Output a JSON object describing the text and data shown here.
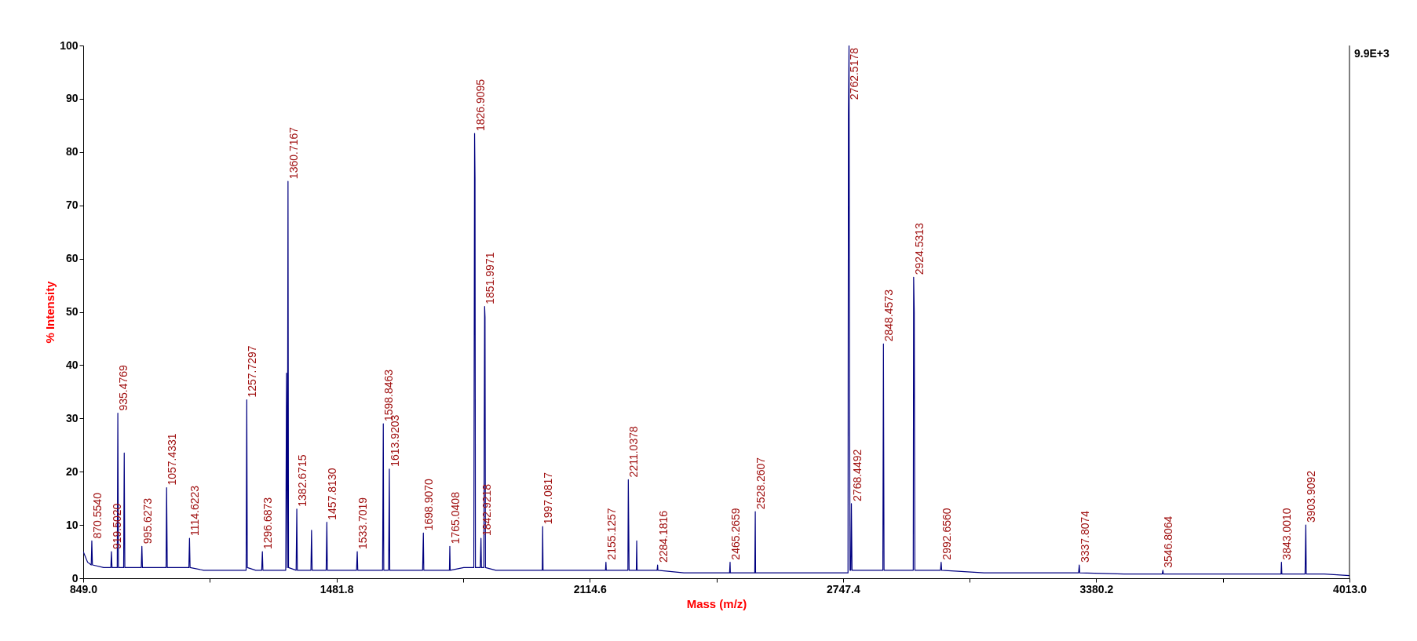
{
  "chart_data": {
    "type": "line",
    "xlabel": "Mass (m/z)",
    "ylabel": "% Intensity",
    "xlim": [
      849,
      4013
    ],
    "ylim": [
      0,
      100
    ],
    "xticks": [
      {
        "value": 849,
        "label": "849.0"
      },
      {
        "value": 1165.4,
        "label": null
      },
      {
        "value": 1481.8,
        "label": "1481.8"
      },
      {
        "value": 1798.2,
        "label": null
      },
      {
        "value": 2114.6,
        "label": "2114.6"
      },
      {
        "value": 2431,
        "label": null
      },
      {
        "value": 2747.4,
        "label": "2747.4"
      },
      {
        "value": 3063.8,
        "label": null
      },
      {
        "value": 3380.2,
        "label": "3380.2"
      },
      {
        "value": 3696.6,
        "label": null
      },
      {
        "value": 4013,
        "label": "4013.0"
      }
    ],
    "yticks": [
      0,
      10,
      20,
      30,
      40,
      50,
      60,
      70,
      80,
      90,
      100
    ],
    "grid": false,
    "series": [
      {
        "color": "#000080",
        "x": [
          849,
          860,
          869,
          870.5,
          872,
          900,
          918,
          919.5,
          921,
          934,
          935.5,
          937,
          950,
          951.5,
          953,
          970,
          994,
          995.6,
          997,
          1030,
          1056,
          1057.4,
          1059,
          1090,
          1113,
          1114.6,
          1116,
          1150,
          1200,
          1256,
          1257.7,
          1259,
          1280,
          1295,
          1296.7,
          1298,
          1330,
          1355,
          1357,
          1359,
          1360.7,
          1362,
          1381,
          1382.7,
          1384,
          1410,
          1418,
          1419.5,
          1421,
          1456,
          1457.8,
          1459,
          1490,
          1532,
          1533.7,
          1535,
          1570,
          1597,
          1598.8,
          1600,
          1612,
          1613.9,
          1615,
          1650,
          1697,
          1698.9,
          1700,
          1740,
          1764,
          1765,
          1766,
          1800,
          1825,
          1826.9,
          1828,
          1829,
          1841,
          1842.9,
          1844,
          1850,
          1852,
          1853,
          1854,
          1880,
          1950,
          1996,
          1997.1,
          1998,
          2050,
          2100,
          2154,
          2155.1,
          2156,
          2190,
          2210,
          2211,
          2212,
          2213,
          2231,
          2232,
          2233,
          2283,
          2284.2,
          2285,
          2350,
          2400,
          2464,
          2465.3,
          2466,
          2527,
          2528.3,
          2529,
          2600,
          2700,
          2760,
          2761,
          2762.5,
          2764,
          2765,
          2767,
          2768.4,
          2770,
          2800,
          2847,
          2848.5,
          2850,
          2923,
          2924,
          2925.5,
          2927,
          2991,
          2992.7,
          2994,
          3100,
          3200,
          3336,
          3337.8,
          3339,
          3450,
          3545,
          3546.8,
          3548,
          3700,
          3842,
          3843,
          3844,
          3902,
          3903.9,
          3905,
          3950,
          4013
        ],
        "values": [
          5,
          3,
          2.5,
          7,
          2.5,
          2,
          2,
          5,
          2,
          2,
          31,
          2,
          2,
          23.5,
          2,
          2,
          2,
          6,
          2,
          2,
          2,
          17,
          2,
          2,
          2,
          7.5,
          2,
          1.5,
          1.5,
          1.5,
          33.5,
          2,
          1.5,
          1.5,
          5,
          1.5,
          1.5,
          1.5,
          38.5,
          2,
          74.5,
          2,
          1.5,
          13,
          1.5,
          1.5,
          1.5,
          9,
          1.5,
          1.5,
          10.5,
          1.5,
          1.5,
          1.5,
          5,
          1.5,
          1.5,
          1.5,
          29,
          1.5,
          1.5,
          20.5,
          1.5,
          1.5,
          1.5,
          8.5,
          1.5,
          1.5,
          1.5,
          6,
          1.5,
          2,
          2,
          83.5,
          75,
          2,
          2,
          7.5,
          2,
          2,
          51,
          49,
          2,
          1.5,
          1.5,
          1.5,
          9.7,
          1.5,
          1.5,
          1.5,
          1.5,
          3,
          1.5,
          1.5,
          1.5,
          18.5,
          10,
          1.5,
          1.5,
          7,
          1.5,
          1.5,
          2.5,
          1.5,
          1,
          1,
          1,
          3,
          1,
          1,
          12.5,
          1,
          1,
          1,
          1,
          87,
          100,
          33,
          1.5,
          1.5,
          14,
          1.5,
          1.5,
          1.5,
          44,
          1.5,
          1.5,
          56.5,
          50,
          1.5,
          1.5,
          3,
          1.5,
          1,
          1,
          1,
          2.5,
          1,
          0.8,
          0.8,
          1.5,
          0.8,
          0.8,
          0.8,
          3,
          0.8,
          0.8,
          10,
          0.8,
          0.8,
          0.5
        ]
      }
    ],
    "annotations": [
      {
        "text": "870.5540",
        "x": 870.5,
        "y": 7
      },
      {
        "text": "919.5020",
        "x": 919.5,
        "y": 5
      },
      {
        "text": "935.4769",
        "x": 935.5,
        "y": 31
      },
      {
        "text": "995.6273",
        "x": 995.6,
        "y": 6
      },
      {
        "text": "1057.4331",
        "x": 1057.4,
        "y": 17
      },
      {
        "text": "1114.6223",
        "x": 1114.6,
        "y": 7.5
      },
      {
        "text": "1257.7297",
        "x": 1257.7,
        "y": 33.5
      },
      {
        "text": "1296.6873",
        "x": 1296.7,
        "y": 5
      },
      {
        "text": "1360.7167",
        "x": 1360.7,
        "y": 74.5
      },
      {
        "text": "1382.6715",
        "x": 1382.7,
        "y": 13
      },
      {
        "text": "1457.8130",
        "x": 1457.8,
        "y": 10.5
      },
      {
        "text": "1533.7019",
        "x": 1533.7,
        "y": 5
      },
      {
        "text": "1598.8463",
        "x": 1598.8,
        "y": 29
      },
      {
        "text": "1613.9203",
        "x": 1613.9,
        "y": 20.5
      },
      {
        "text": "1698.9070",
        "x": 1698.9,
        "y": 8.5
      },
      {
        "text": "1765.0408",
        "x": 1765,
        "y": 6
      },
      {
        "text": "1826.9095",
        "x": 1826.9,
        "y": 83.5
      },
      {
        "text": "1842.9218",
        "x": 1842.9,
        "y": 7.5
      },
      {
        "text": "1851.9971",
        "x": 1852,
        "y": 51
      },
      {
        "text": "1997.0817",
        "x": 1997.1,
        "y": 9.7
      },
      {
        "text": "2155.1257",
        "x": 2155.1,
        "y": 3
      },
      {
        "text": "2211.0378",
        "x": 2211,
        "y": 18.5
      },
      {
        "text": "2284.1816",
        "x": 2284.2,
        "y": 2.5
      },
      {
        "text": "2465.2659",
        "x": 2465.3,
        "y": 3
      },
      {
        "text": "2528.2607",
        "x": 2528.3,
        "y": 12.5
      },
      {
        "text": "2762.5178",
        "x": 2762.5,
        "y": 100
      },
      {
        "text": "2768.4492",
        "x": 2768.4,
        "y": 14
      },
      {
        "text": "2848.4573",
        "x": 2848.5,
        "y": 44
      },
      {
        "text": "2924.5313",
        "x": 2924,
        "y": 56.5
      },
      {
        "text": "2992.6560",
        "x": 2992.7,
        "y": 3
      },
      {
        "text": "3337.8074",
        "x": 3337.8,
        "y": 2.5
      },
      {
        "text": "3546.8064",
        "x": 3546.8,
        "y": 1.5
      },
      {
        "text": "3843.0010",
        "x": 3843,
        "y": 3
      },
      {
        "text": "3903.9092",
        "x": 3903.9,
        "y": 10
      },
      "9.9E+3"
    ]
  }
}
